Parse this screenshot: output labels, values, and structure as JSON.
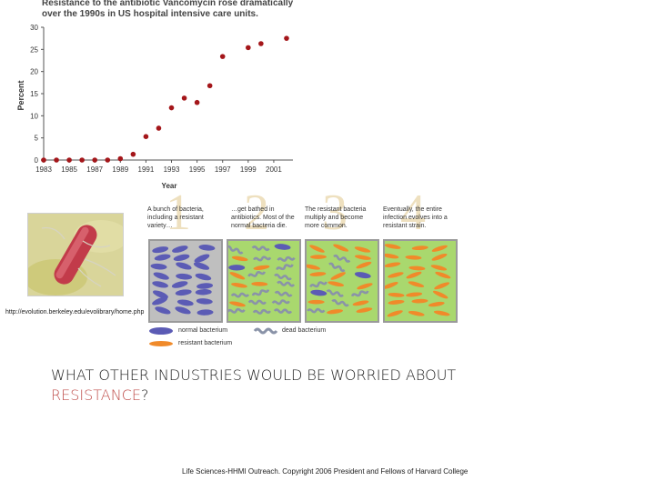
{
  "chart_data": {
    "type": "scatter",
    "title": "Resistance to the antibiotic Vancomycin rose dramatically over the 1990s in US hospital intensive care units.",
    "xlabel": "Year",
    "ylabel": "Percent",
    "xlim": [
      1983,
      2002.5
    ],
    "ylim": [
      0,
      30
    ],
    "x_ticks": [
      "1983",
      "1985",
      "1987",
      "1989",
      "1991",
      "1993",
      "1995",
      "1997",
      "1999",
      "2001"
    ],
    "y_ticks": [
      "0",
      "5",
      "10",
      "15",
      "20",
      "25",
      "30"
    ],
    "x": [
      1983,
      1984,
      1985,
      1986,
      1987,
      1988,
      1989,
      1990,
      1991,
      1992,
      1993,
      1994,
      1995,
      1996,
      1997,
      1999,
      2000,
      2002
    ],
    "values": [
      0,
      0,
      0,
      0,
      0,
      0,
      0.3,
      1.3,
      5.3,
      7.2,
      11.8,
      14,
      13,
      16.8,
      23.4,
      25.4,
      26.3,
      27.5
    ],
    "marker_color": "#a4161a"
  },
  "diagram": {
    "steps": [
      {
        "number": "1",
        "text": "A bunch of bacteria, including a resistant variety…",
        "panel_color": "#bfbfbf"
      },
      {
        "number": "2",
        "text": "…get bathed in antibiotics. Most of the normal bacteria die.",
        "panel_color": "#a9d86e"
      },
      {
        "number": "3",
        "text": "The resistant bacteria multiply and become more common.",
        "panel_color": "#a9d86e"
      },
      {
        "number": "4",
        "text": "Eventually, the entire infection evolves into a resistant strain.",
        "panel_color": "#a9d86e"
      }
    ],
    "legend": {
      "normal": "normal bacterium",
      "dead": "dead bacterium",
      "resistant": "resistant bacterium"
    },
    "colors": {
      "normal": "#5b5bb5",
      "resistant": "#f08a2a",
      "dead": "#8a93a8"
    }
  },
  "source_url": "http://evolution.berkeley.edu/evolibrary/home.php",
  "question": {
    "line1": "WHAT OTHER INDUSTRIES WOULD BE WORRIED ABOUT",
    "highlight": "RESISTANCE",
    "suffix": "?"
  },
  "footer": "Life Sciences-HHMI Outreach. Copyright 2006 President and Fellows of Harvard College"
}
